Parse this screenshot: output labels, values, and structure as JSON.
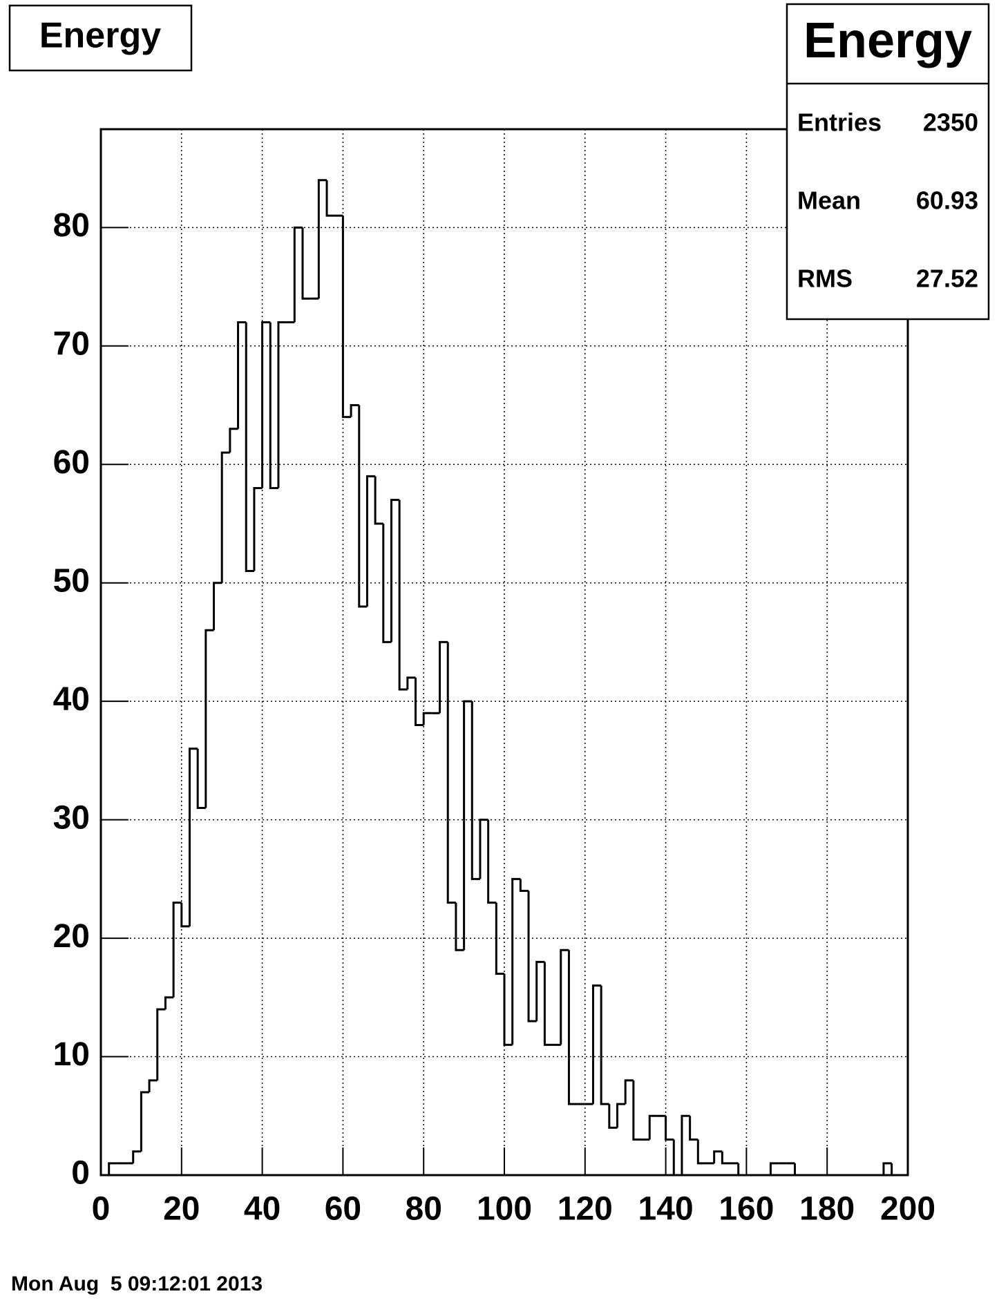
{
  "chart_data": {
    "type": "histogram",
    "title": "Energy",
    "bins": [
      0,
      2,
      4,
      6,
      8,
      10,
      12,
      14,
      16,
      18,
      20,
      22,
      24,
      26,
      28,
      30,
      32,
      34,
      36,
      38,
      40,
      42,
      44,
      46,
      48,
      50,
      52,
      54,
      56,
      58,
      60,
      62,
      64,
      66,
      68,
      70,
      72,
      74,
      76,
      78,
      80,
      82,
      84,
      86,
      88,
      90,
      92,
      94,
      96,
      98,
      100,
      102,
      104,
      106,
      108,
      110,
      112,
      114,
      116,
      118,
      120,
      122,
      124,
      126,
      128,
      130,
      132,
      134,
      136,
      138,
      140,
      142,
      144,
      146,
      148,
      150,
      152,
      154,
      156,
      158,
      160,
      162,
      164,
      166,
      168,
      170,
      172,
      174,
      176,
      178,
      180,
      182,
      184,
      186,
      188,
      190,
      192,
      194,
      196,
      198,
      200
    ],
    "values": [
      0,
      1,
      1,
      1,
      2,
      7,
      8,
      14,
      15,
      23,
      21,
      36,
      31,
      46,
      50,
      61,
      63,
      72,
      51,
      58,
      72,
      58,
      72,
      72,
      80,
      74,
      74,
      84,
      81,
      81,
      64,
      65,
      48,
      59,
      55,
      45,
      57,
      41,
      42,
      38,
      39,
      39,
      45,
      23,
      19,
      40,
      25,
      30,
      23,
      17,
      11,
      25,
      24,
      13,
      18,
      11,
      11,
      19,
      6,
      6,
      6,
      16,
      6,
      4,
      6,
      8,
      3,
      3,
      5,
      5,
      3,
      0,
      5,
      3,
      1,
      1,
      2,
      1,
      1,
      0,
      0,
      0,
      0,
      1,
      1,
      1,
      0,
      0,
      0,
      0,
      0,
      0,
      0,
      0,
      0,
      0,
      0,
      1,
      0,
      0
    ],
    "color": "#000000",
    "xlim": [
      0,
      200
    ],
    "xticks": [
      0,
      20,
      40,
      60,
      80,
      100,
      120,
      140,
      160,
      180,
      200
    ],
    "ylim": [
      0,
      88.3
    ],
    "yticks": [
      0,
      10,
      20,
      30,
      40,
      50,
      60,
      70,
      80
    ],
    "grid": true,
    "stats_title": "Energy",
    "stats": [
      {
        "label": "Entries",
        "value": "2350"
      },
      {
        "label": "Mean",
        "value": "60.93"
      },
      {
        "label": "RMS",
        "value": "27.52"
      }
    ],
    "footer": "Mon Aug  5 09:12:01 2013"
  }
}
